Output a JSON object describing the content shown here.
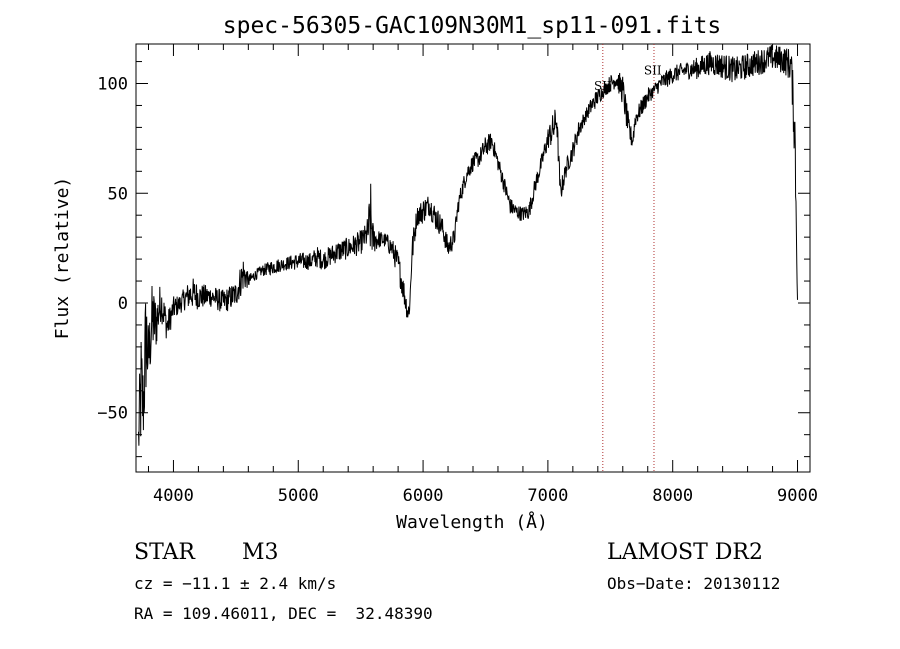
{
  "chart_data": {
    "type": "line",
    "title": "spec-56305-GAC109N30M1_sp11-091.fits",
    "xlabel": "Wavelength (Å)",
    "ylabel": "Flux (relative)",
    "xlim": [
      3700,
      9100
    ],
    "ylim": [
      -77,
      118
    ],
    "x_ticks": [
      4000,
      5000,
      6000,
      7000,
      8000,
      9000
    ],
    "y_ticks": [
      -50,
      0,
      50,
      100
    ],
    "grid": false,
    "line_color": "#000000",
    "marker_color": "#b03030",
    "series": [
      {
        "x": [
          3720,
          3740,
          3760,
          3780,
          3800,
          3830,
          3860,
          3900,
          3950,
          4000,
          4050,
          4100,
          4150,
          4200,
          4300,
          4400,
          4500,
          4560,
          4600,
          4650,
          4700,
          4800,
          4900,
          5000,
          5100,
          5150,
          5200,
          5300,
          5400,
          5500,
          5550,
          5580,
          5600,
          5650,
          5700,
          5750,
          5800,
          5850,
          5880,
          5895,
          5910,
          5950,
          6000,
          6050,
          6100,
          6150,
          6200,
          6250,
          6280,
          6300,
          6350,
          6400,
          6450,
          6500,
          6550,
          6600,
          6650,
          6700,
          6750,
          6800,
          6850,
          6900,
          6950,
          7000,
          7050,
          7070,
          7100,
          7150,
          7200,
          7250,
          7300,
          7350,
          7400,
          7450,
          7500,
          7550,
          7600,
          7650,
          7680,
          7700,
          7750,
          7800,
          7850,
          7900,
          8000,
          8100,
          8200,
          8300,
          8400,
          8500,
          8600,
          8700,
          8800,
          8900,
          8950,
          8980,
          9000
        ],
        "y": [
          -60,
          -20,
          -40,
          10,
          -20,
          5,
          -5,
          5,
          -10,
          -2,
          0,
          5,
          8,
          5,
          4,
          2,
          5,
          8,
          10,
          12,
          15,
          18,
          18,
          20,
          20,
          22,
          20,
          25,
          28,
          30,
          33,
          35,
          32,
          30,
          30,
          28,
          20,
          5,
          -5,
          2,
          25,
          40,
          43,
          47,
          40,
          35,
          25,
          30,
          45,
          50,
          60,
          65,
          66,
          72,
          75,
          65,
          55,
          45,
          42,
          40,
          42,
          55,
          65,
          75,
          80,
          85,
          50,
          62,
          70,
          80,
          86,
          90,
          95,
          98,
          100,
          104,
          100,
          80,
          75,
          85,
          90,
          95,
          98,
          100,
          105,
          108,
          108,
          112,
          110,
          108,
          110,
          112,
          115,
          113,
          110,
          80,
          0
        ],
        "lower_envelope": [
          -75,
          -70,
          -65,
          -45,
          -40,
          -25,
          -22,
          -8,
          -18,
          -8,
          -5,
          -3,
          -3,
          -3,
          -2,
          -5,
          -2,
          5,
          7,
          10,
          12,
          13,
          15,
          15,
          15,
          16,
          15,
          18,
          20,
          22,
          25,
          20,
          22,
          25,
          25,
          20,
          12,
          -2,
          -10,
          -5,
          15,
          35,
          36,
          40,
          33,
          30,
          20,
          25,
          40,
          45,
          55,
          60,
          62,
          66,
          70,
          60,
          50,
          40,
          38,
          37,
          38,
          50,
          60,
          70,
          72,
          78,
          45,
          58,
          65,
          75,
          82,
          86,
          90,
          94,
          96,
          98,
          90,
          72,
          70,
          80,
          85,
          90,
          94,
          96,
          100,
          102,
          102,
          104,
          102,
          100,
          102,
          104,
          106,
          104,
          100,
          60,
          -2
        ],
        "upper_envelope": [
          -50,
          -10,
          -28,
          15,
          -10,
          10,
          3,
          10,
          -4,
          3,
          4,
          8,
          12,
          9,
          8,
          6,
          10,
          22,
          13,
          15,
          17,
          20,
          21,
          23,
          23,
          26,
          24,
          28,
          30,
          33,
          37,
          55,
          36,
          33,
          32,
          30,
          24,
          10,
          0,
          6,
          30,
          44,
          48,
          50,
          45,
          40,
          30,
          34,
          48,
          53,
          63,
          68,
          70,
          76,
          78,
          68,
          58,
          48,
          45,
          44,
          46,
          58,
          68,
          80,
          88,
          90,
          55,
          66,
          74,
          84,
          88,
          94,
          98,
          100,
          104,
          106,
          104,
          84,
          78,
          88,
          93,
          98,
          100,
          104,
          108,
          110,
          112,
          115,
          114,
          112,
          114,
          116,
          118,
          117,
          116,
          90,
          5
        ]
      }
    ],
    "annotations": [
      {
        "label": "SII",
        "x": 7440,
        "y": 97
      },
      {
        "label": "SII",
        "x": 7840,
        "y": 104
      }
    ],
    "vlines": [
      7440,
      7850
    ]
  },
  "info": {
    "object_type": "STAR",
    "subclass": "M3",
    "survey": "LAMOST DR2",
    "cz": "cz = −11.1 ± 2.4 km/s",
    "obs_date": "Obs−Date: 20130112",
    "coords": "RA = 109.46011, DEC =  32.48390"
  }
}
